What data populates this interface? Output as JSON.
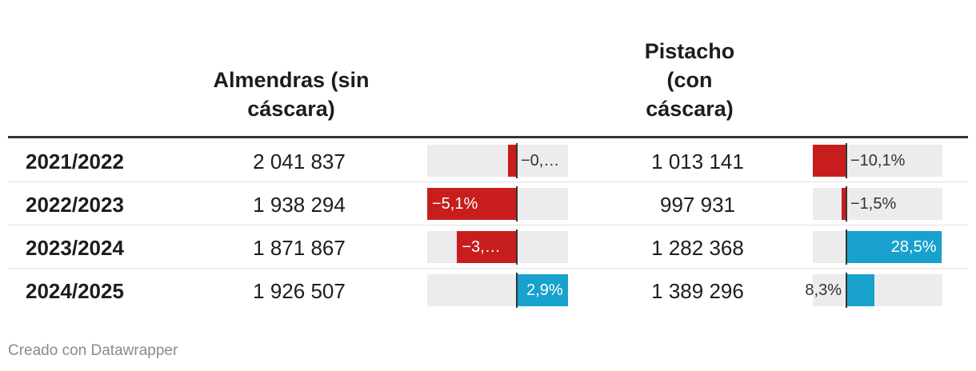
{
  "headers": {
    "almond": [
      "Almendras (sin",
      "cáscara)"
    ],
    "pist": [
      "Pistacho",
      "(con",
      "cáscara)"
    ]
  },
  "footer": "Creado con Datawrapper",
  "colors": {
    "negative": "#c71e1d",
    "positive": "#18a1cd",
    "track": "#ececec",
    "axis": "#333333"
  },
  "chart_data": {
    "type": "table",
    "columns": [
      "",
      "Almendras (sin cáscara)",
      "",
      "Pistacho (con cáscara)",
      ""
    ],
    "rows": [
      {
        "year": "2021/2022",
        "almond": "2 041 837",
        "almond_change": -0.5,
        "almond_label": "−0,…",
        "pist": "1 013 141",
        "pist_change": -10.1,
        "pist_label": "−10,1%"
      },
      {
        "year": "2022/2023",
        "almond": "1 938 294",
        "almond_change": -5.1,
        "almond_label": "−5,1%",
        "pist": "997 931",
        "pist_change": -1.5,
        "pist_label": "−1,5%"
      },
      {
        "year": "2023/2024",
        "almond": "1 871 867",
        "almond_change": -3.4,
        "almond_label": "−3,…",
        "pist": "1 282 368",
        "pist_change": 28.5,
        "pist_label": "28,5%"
      },
      {
        "year": "2024/2025",
        "almond": "1 926 507",
        "almond_change": 2.9,
        "almond_label": "2,9%",
        "pist": "1 389 296",
        "pist_change": 8.3,
        "pist_label": "8,3%"
      }
    ],
    "almond_range": [
      -5.1,
      2.9
    ],
    "pist_range": [
      -10.1,
      28.5
    ]
  }
}
